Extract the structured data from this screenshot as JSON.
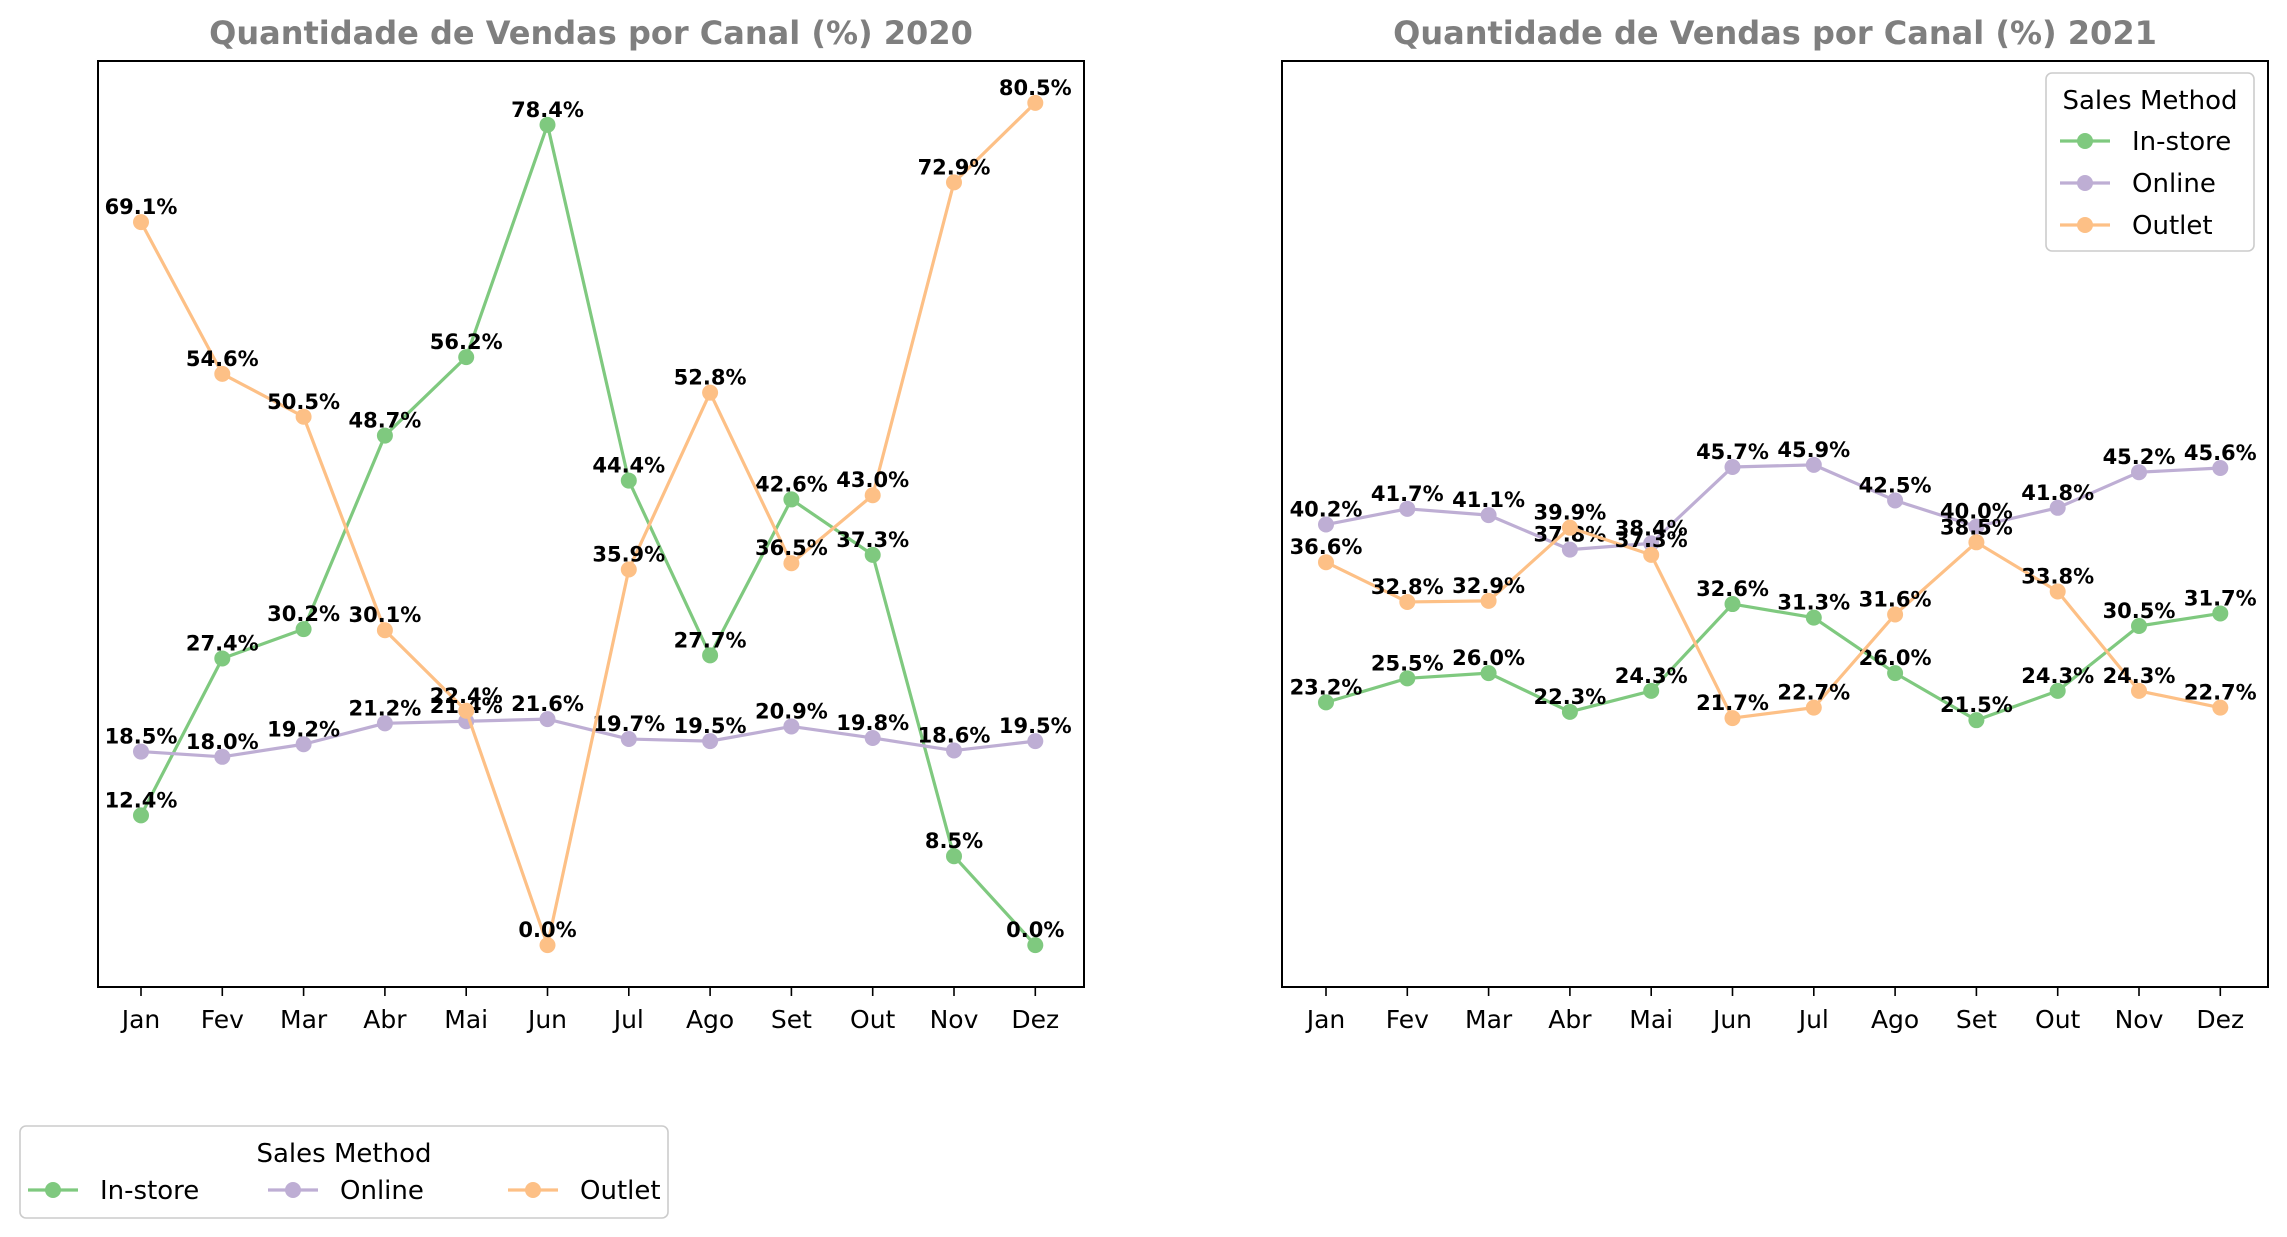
{
  "colors": {
    "In-store": "#7fc97f",
    "Online": "#beaed4",
    "Outlet": "#fdc086"
  },
  "chart_data": [
    {
      "type": "line",
      "title": "Quantidade de Vendas por Canal (%) 2020",
      "xlabel": "",
      "ylabel": "",
      "categories": [
        "Jan",
        "Fev",
        "Mar",
        "Abr",
        "Mai",
        "Jun",
        "Jul",
        "Ago",
        "Set",
        "Out",
        "Nov",
        "Dez"
      ],
      "ylim": [
        -4.0,
        84.5
      ],
      "grid": false,
      "series": [
        {
          "name": "In-store",
          "values": [
            12.4,
            27.4,
            30.2,
            48.7,
            56.2,
            78.4,
            44.4,
            27.7,
            42.6,
            37.3,
            8.5,
            0.0
          ],
          "labels": [
            "12.4%",
            "27.4%",
            "30.2%",
            "48.7%",
            "56.2%",
            "78.4%",
            "44.4%",
            "27.7%",
            "42.6%",
            "37.3%",
            "8.5%",
            "0.0%"
          ]
        },
        {
          "name": "Online",
          "values": [
            18.5,
            18.0,
            19.2,
            21.2,
            21.4,
            21.6,
            19.7,
            19.5,
            20.9,
            19.8,
            18.6,
            19.5
          ],
          "labels": [
            "18.5%",
            "18.0%",
            "19.2%",
            "21.2%",
            "21.4%",
            "21.6%",
            "19.7%",
            "19.5%",
            "20.9%",
            "19.8%",
            "18.6%",
            "19.5%"
          ]
        },
        {
          "name": "Outlet",
          "values": [
            69.1,
            54.6,
            50.5,
            30.1,
            22.4,
            0.0,
            35.9,
            52.8,
            36.5,
            43.0,
            72.9,
            80.5
          ],
          "labels": [
            "69.1%",
            "54.6%",
            "50.5%",
            "30.1%",
            "22.4%",
            "0.0%",
            "35.9%",
            "52.8%",
            "36.5%",
            "43.0%",
            "72.9%",
            "80.5%"
          ]
        }
      ],
      "legend": {
        "title": "Sales Method",
        "placement": "below-left",
        "entries": [
          "In-store",
          "Online",
          "Outlet"
        ]
      }
    },
    {
      "type": "line",
      "title": "Quantidade de Vendas por Canal (%) 2021",
      "xlabel": "",
      "ylabel": "",
      "categories": [
        "Jan",
        "Fev",
        "Mar",
        "Abr",
        "Mai",
        "Jun",
        "Jul",
        "Ago",
        "Set",
        "Out",
        "Nov",
        "Dez"
      ],
      "ylim": [
        -4.0,
        84.5
      ],
      "grid": false,
      "series": [
        {
          "name": "In-store",
          "values": [
            23.2,
            25.5,
            26.0,
            22.3,
            24.3,
            32.6,
            31.3,
            26.0,
            21.5,
            24.3,
            30.5,
            31.7
          ],
          "labels": [
            "23.2%",
            "25.5%",
            "26.0%",
            "22.3%",
            "24.3%",
            "32.6%",
            "31.3%",
            "26.0%",
            "21.5%",
            "24.3%",
            "30.5%",
            "31.7%"
          ]
        },
        {
          "name": "Online",
          "values": [
            40.2,
            41.7,
            41.1,
            37.8,
            38.4,
            45.7,
            45.9,
            42.5,
            40.0,
            41.8,
            45.2,
            45.6
          ],
          "labels": [
            "40.2%",
            "41.7%",
            "41.1%",
            "37.8%",
            "38.4%",
            "45.7%",
            "45.9%",
            "42.5%",
            "40.0%",
            "41.8%",
            "45.2%",
            "45.6%"
          ]
        },
        {
          "name": "Outlet",
          "values": [
            36.6,
            32.8,
            32.9,
            39.9,
            37.3,
            21.7,
            22.7,
            31.6,
            38.5,
            33.8,
            24.3,
            22.7
          ],
          "labels": [
            "36.6%",
            "32.8%",
            "32.9%",
            "39.9%",
            "37.3%",
            "21.7%",
            "22.7%",
            "31.6%",
            "38.5%",
            "33.8%",
            "24.3%",
            "22.7%"
          ]
        }
      ],
      "legend": {
        "title": "Sales Method",
        "placement": "top-right",
        "entries": [
          "In-store",
          "Online",
          "Outlet"
        ]
      }
    }
  ]
}
